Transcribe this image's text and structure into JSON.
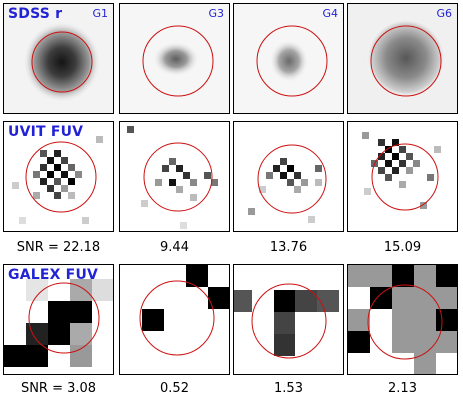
{
  "columns": [
    "G1",
    "G3",
    "G4",
    "G6"
  ],
  "rows": [
    {
      "survey": "SDSS r",
      "snr_prefix": null,
      "snr": null
    },
    {
      "survey": "UVIT FUV",
      "snr_prefix": "SNR = ",
      "snr": [
        "22.18",
        "9.44",
        "13.76",
        "15.09"
      ]
    },
    {
      "survey": "GALEX FUV",
      "snr_prefix": "SNR = ",
      "snr": [
        "3.08",
        "0.52",
        "1.53",
        "2.13"
      ]
    }
  ],
  "colors": {
    "label": "#2323d6",
    "aperture": "#cc1111",
    "frame": "#000000"
  }
}
